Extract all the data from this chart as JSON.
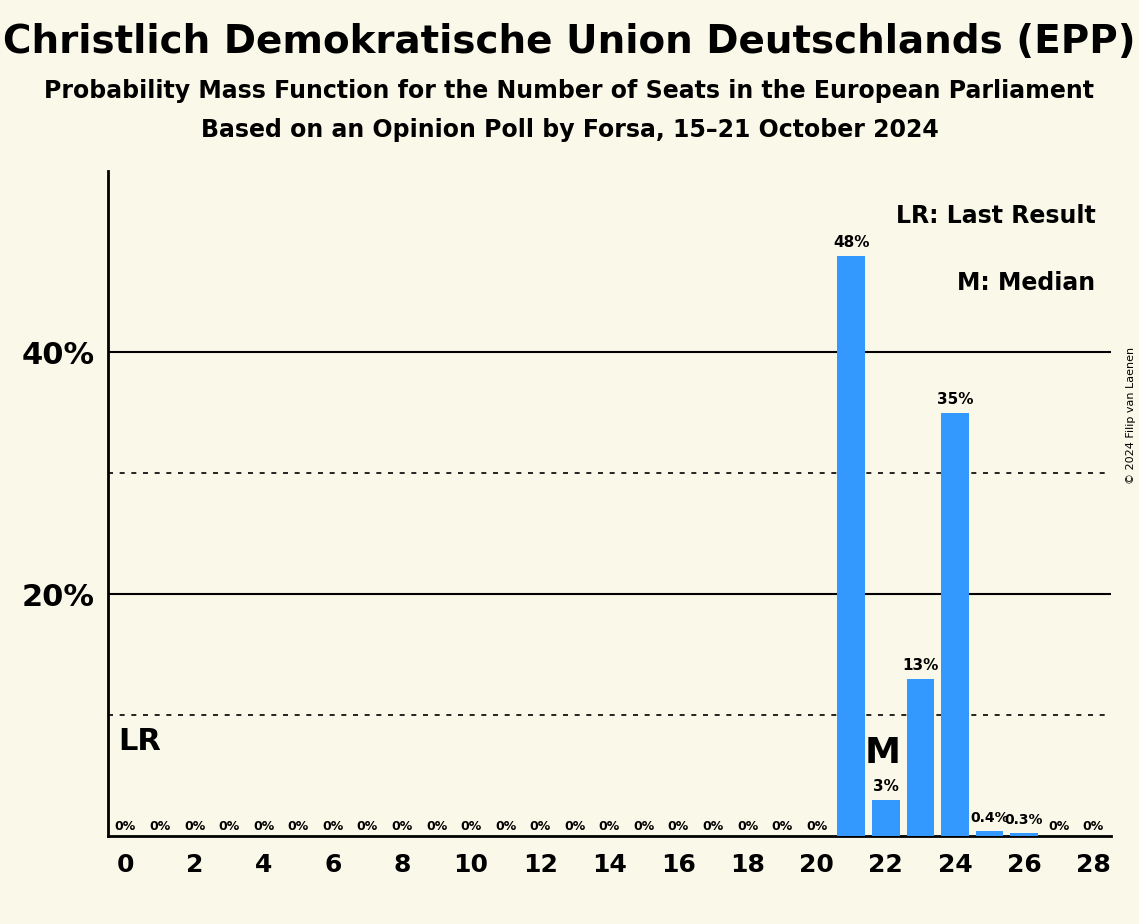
{
  "title": "Christlich Demokratische Union Deutschlands (EPP)",
  "subtitle1": "Probability Mass Function for the Number of Seats in the European Parliament",
  "subtitle2": "Based on an Opinion Poll by Forsa, 15–21 October 2024",
  "copyright": "© 2024 Filip van Laenen",
  "bar_color": "#3399ff",
  "background_color": "#faf8e8",
  "seats": [
    0,
    1,
    2,
    3,
    4,
    5,
    6,
    7,
    8,
    9,
    10,
    11,
    12,
    13,
    14,
    15,
    16,
    17,
    18,
    19,
    20,
    21,
    22,
    23,
    24,
    25,
    26,
    27,
    28
  ],
  "probabilities": [
    0,
    0,
    0,
    0,
    0,
    0,
    0,
    0,
    0,
    0,
    0,
    0,
    0,
    0,
    0,
    0,
    0,
    0,
    0,
    0,
    0,
    48,
    3,
    13,
    35,
    0.4,
    0.3,
    0,
    0
  ],
  "LR_seat": 21,
  "median_seat": 22,
  "xlim": [
    -0.5,
    28.5
  ],
  "ylim": [
    0,
    55
  ],
  "solid_yticks": [
    20,
    40
  ],
  "dotted_yticks": [
    10,
    30
  ],
  "ytick_positions": [
    20,
    40
  ],
  "ytick_labels": [
    "20%",
    "40%"
  ],
  "xticks": [
    0,
    2,
    4,
    6,
    8,
    10,
    12,
    14,
    16,
    18,
    20,
    22,
    24,
    26,
    28
  ],
  "LR_label": "LR",
  "median_label": "M",
  "legend_LR": "LR: Last Result",
  "legend_M": "M: Median",
  "bar_width": 0.8
}
